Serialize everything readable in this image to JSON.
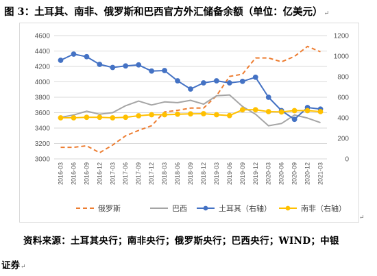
{
  "title": "图 3：土耳其、南非、俄罗斯和巴西官方外汇储备余额（单位：亿美元）",
  "return_mark": "↵",
  "source_line1": "资料来源：土耳其央行；南非央行；俄罗斯央行；巴西央行；WIND；中银",
  "source_line2": "证券",
  "colors": {
    "russia": "#ED7D31",
    "brazil": "#A5A5A5",
    "turkey": "#4472C4",
    "south_africa": "#FFC000",
    "grid": "#d9d9d9",
    "axis_text": "#595959"
  },
  "chart_data": {
    "type": "line",
    "categories": [
      "2016-03",
      "2016-06",
      "2016-09",
      "2016-12",
      "2017-03",
      "2017-06",
      "2017-09",
      "2017-12",
      "2018-03",
      "2018-06",
      "2018-09",
      "2018-12",
      "2019-03",
      "2019-06",
      "2019-09",
      "2019-12",
      "2020-03",
      "2020-06",
      "2020-09",
      "2020-12",
      "2021-03"
    ],
    "y_left": {
      "min": 3000,
      "max": 4600,
      "step": 200,
      "ticks": [
        "3000",
        "3200",
        "3400",
        "3600",
        "3800",
        "4000",
        "4200",
        "4400",
        "4600"
      ]
    },
    "y_right": {
      "min": 0,
      "max": 1200,
      "step": 200,
      "ticks": [
        "0",
        "200",
        "400",
        "600",
        "800",
        "1000",
        "1200"
      ]
    },
    "series": [
      {
        "name": "俄罗斯",
        "axis": "left",
        "style": "dashed",
        "color_key": "russia",
        "values": [
          3150,
          3150,
          3170,
          3080,
          3180,
          3300,
          3370,
          3430,
          3610,
          3630,
          3660,
          3660,
          3820,
          4070,
          4100,
          4310,
          4310,
          4260,
          4330,
          4460,
          4390
        ]
      },
      {
        "name": "巴西",
        "axis": "left",
        "style": "solid",
        "color_key": "brazil",
        "values": [
          3540,
          3570,
          3620,
          3580,
          3600,
          3690,
          3750,
          3700,
          3740,
          3730,
          3760,
          3710,
          3820,
          3830,
          3680,
          3580,
          3430,
          3460,
          3570,
          3530,
          3470
        ]
      },
      {
        "name": "土耳其（右轴）",
        "axis": "right",
        "style": "solid-marker",
        "color_key": "turkey",
        "values": [
          960,
          1020,
          995,
          920,
          890,
          905,
          915,
          855,
          860,
          760,
          680,
          740,
          760,
          740,
          755,
          795,
          600,
          470,
          385,
          500,
          485
        ]
      },
      {
        "name": "南非（右轴）",
        "axis": "right",
        "style": "solid-marker",
        "color_key": "south_africa",
        "values": [
          400,
          400,
          405,
          405,
          400,
          405,
          420,
          430,
          430,
          435,
          438,
          440,
          430,
          422,
          478,
          478,
          460,
          457,
          470,
          470,
          460
        ]
      }
    ]
  }
}
